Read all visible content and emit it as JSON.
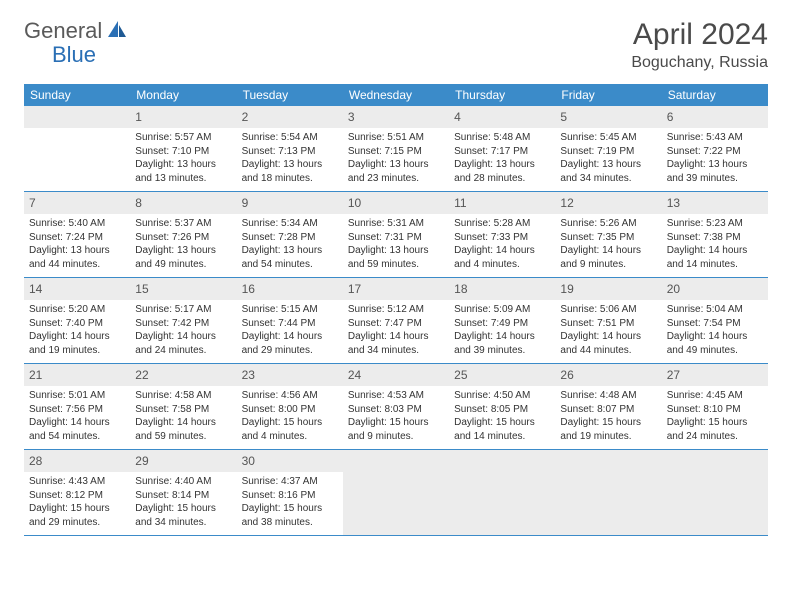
{
  "logo": {
    "word1": "General",
    "word2": "Blue"
  },
  "title": "April 2024",
  "location": "Boguchany, Russia",
  "colors": {
    "header_bg": "#3b8bc9",
    "header_text": "#ffffff",
    "daynum_bg": "#ececec",
    "border": "#3b8bc9",
    "logo_gray": "#5a5a5a",
    "logo_blue": "#2a6fb5"
  },
  "day_names": [
    "Sunday",
    "Monday",
    "Tuesday",
    "Wednesday",
    "Thursday",
    "Friday",
    "Saturday"
  ],
  "weeks": [
    [
      {
        "empty": true,
        "lead": true
      },
      {
        "n": "1",
        "sr": "Sunrise: 5:57 AM",
        "ss": "Sunset: 7:10 PM",
        "d1": "Daylight: 13 hours",
        "d2": "and 13 minutes."
      },
      {
        "n": "2",
        "sr": "Sunrise: 5:54 AM",
        "ss": "Sunset: 7:13 PM",
        "d1": "Daylight: 13 hours",
        "d2": "and 18 minutes."
      },
      {
        "n": "3",
        "sr": "Sunrise: 5:51 AM",
        "ss": "Sunset: 7:15 PM",
        "d1": "Daylight: 13 hours",
        "d2": "and 23 minutes."
      },
      {
        "n": "4",
        "sr": "Sunrise: 5:48 AM",
        "ss": "Sunset: 7:17 PM",
        "d1": "Daylight: 13 hours",
        "d2": "and 28 minutes."
      },
      {
        "n": "5",
        "sr": "Sunrise: 5:45 AM",
        "ss": "Sunset: 7:19 PM",
        "d1": "Daylight: 13 hours",
        "d2": "and 34 minutes."
      },
      {
        "n": "6",
        "sr": "Sunrise: 5:43 AM",
        "ss": "Sunset: 7:22 PM",
        "d1": "Daylight: 13 hours",
        "d2": "and 39 minutes."
      }
    ],
    [
      {
        "n": "7",
        "sr": "Sunrise: 5:40 AM",
        "ss": "Sunset: 7:24 PM",
        "d1": "Daylight: 13 hours",
        "d2": "and 44 minutes."
      },
      {
        "n": "8",
        "sr": "Sunrise: 5:37 AM",
        "ss": "Sunset: 7:26 PM",
        "d1": "Daylight: 13 hours",
        "d2": "and 49 minutes."
      },
      {
        "n": "9",
        "sr": "Sunrise: 5:34 AM",
        "ss": "Sunset: 7:28 PM",
        "d1": "Daylight: 13 hours",
        "d2": "and 54 minutes."
      },
      {
        "n": "10",
        "sr": "Sunrise: 5:31 AM",
        "ss": "Sunset: 7:31 PM",
        "d1": "Daylight: 13 hours",
        "d2": "and 59 minutes."
      },
      {
        "n": "11",
        "sr": "Sunrise: 5:28 AM",
        "ss": "Sunset: 7:33 PM",
        "d1": "Daylight: 14 hours",
        "d2": "and 4 minutes."
      },
      {
        "n": "12",
        "sr": "Sunrise: 5:26 AM",
        "ss": "Sunset: 7:35 PM",
        "d1": "Daylight: 14 hours",
        "d2": "and 9 minutes."
      },
      {
        "n": "13",
        "sr": "Sunrise: 5:23 AM",
        "ss": "Sunset: 7:38 PM",
        "d1": "Daylight: 14 hours",
        "d2": "and 14 minutes."
      }
    ],
    [
      {
        "n": "14",
        "sr": "Sunrise: 5:20 AM",
        "ss": "Sunset: 7:40 PM",
        "d1": "Daylight: 14 hours",
        "d2": "and 19 minutes."
      },
      {
        "n": "15",
        "sr": "Sunrise: 5:17 AM",
        "ss": "Sunset: 7:42 PM",
        "d1": "Daylight: 14 hours",
        "d2": "and 24 minutes."
      },
      {
        "n": "16",
        "sr": "Sunrise: 5:15 AM",
        "ss": "Sunset: 7:44 PM",
        "d1": "Daylight: 14 hours",
        "d2": "and 29 minutes."
      },
      {
        "n": "17",
        "sr": "Sunrise: 5:12 AM",
        "ss": "Sunset: 7:47 PM",
        "d1": "Daylight: 14 hours",
        "d2": "and 34 minutes."
      },
      {
        "n": "18",
        "sr": "Sunrise: 5:09 AM",
        "ss": "Sunset: 7:49 PM",
        "d1": "Daylight: 14 hours",
        "d2": "and 39 minutes."
      },
      {
        "n": "19",
        "sr": "Sunrise: 5:06 AM",
        "ss": "Sunset: 7:51 PM",
        "d1": "Daylight: 14 hours",
        "d2": "and 44 minutes."
      },
      {
        "n": "20",
        "sr": "Sunrise: 5:04 AM",
        "ss": "Sunset: 7:54 PM",
        "d1": "Daylight: 14 hours",
        "d2": "and 49 minutes."
      }
    ],
    [
      {
        "n": "21",
        "sr": "Sunrise: 5:01 AM",
        "ss": "Sunset: 7:56 PM",
        "d1": "Daylight: 14 hours",
        "d2": "and 54 minutes."
      },
      {
        "n": "22",
        "sr": "Sunrise: 4:58 AM",
        "ss": "Sunset: 7:58 PM",
        "d1": "Daylight: 14 hours",
        "d2": "and 59 minutes."
      },
      {
        "n": "23",
        "sr": "Sunrise: 4:56 AM",
        "ss": "Sunset: 8:00 PM",
        "d1": "Daylight: 15 hours",
        "d2": "and 4 minutes."
      },
      {
        "n": "24",
        "sr": "Sunrise: 4:53 AM",
        "ss": "Sunset: 8:03 PM",
        "d1": "Daylight: 15 hours",
        "d2": "and 9 minutes."
      },
      {
        "n": "25",
        "sr": "Sunrise: 4:50 AM",
        "ss": "Sunset: 8:05 PM",
        "d1": "Daylight: 15 hours",
        "d2": "and 14 minutes."
      },
      {
        "n": "26",
        "sr": "Sunrise: 4:48 AM",
        "ss": "Sunset: 8:07 PM",
        "d1": "Daylight: 15 hours",
        "d2": "and 19 minutes."
      },
      {
        "n": "27",
        "sr": "Sunrise: 4:45 AM",
        "ss": "Sunset: 8:10 PM",
        "d1": "Daylight: 15 hours",
        "d2": "and 24 minutes."
      }
    ],
    [
      {
        "n": "28",
        "sr": "Sunrise: 4:43 AM",
        "ss": "Sunset: 8:12 PM",
        "d1": "Daylight: 15 hours",
        "d2": "and 29 minutes."
      },
      {
        "n": "29",
        "sr": "Sunrise: 4:40 AM",
        "ss": "Sunset: 8:14 PM",
        "d1": "Daylight: 15 hours",
        "d2": "and 34 minutes."
      },
      {
        "n": "30",
        "sr": "Sunrise: 4:37 AM",
        "ss": "Sunset: 8:16 PM",
        "d1": "Daylight: 15 hours",
        "d2": "and 38 minutes."
      },
      {
        "empty": true,
        "trail": true
      },
      {
        "empty": true,
        "trail": true
      },
      {
        "empty": true,
        "trail": true
      },
      {
        "empty": true,
        "trail": true
      }
    ]
  ]
}
